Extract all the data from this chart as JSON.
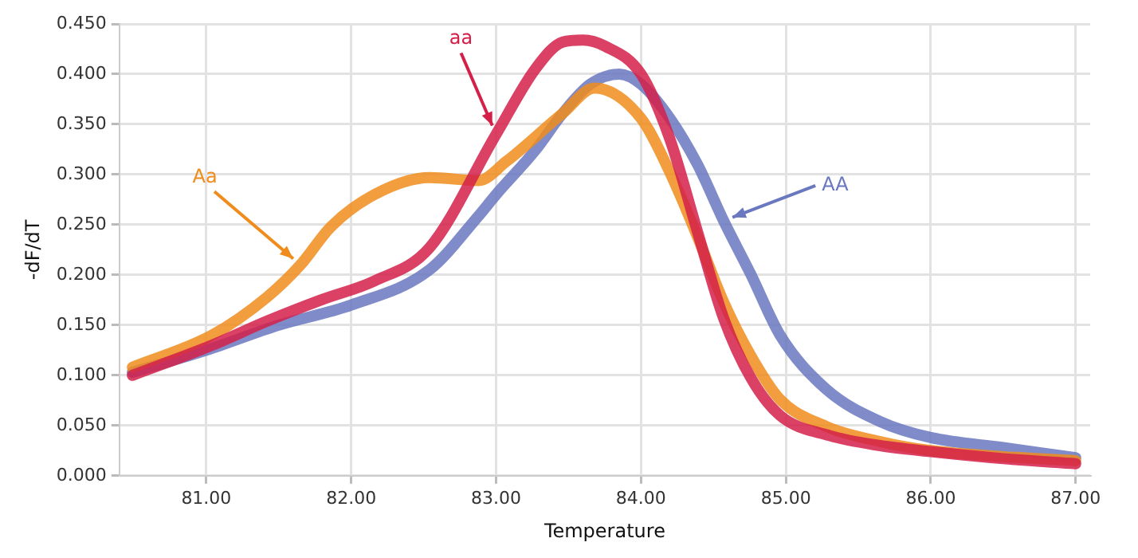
{
  "chart_data": {
    "type": "line",
    "xlabel": "Temperature",
    "ylabel": "-dF/dT",
    "xlim": [
      80.4,
      87.1
    ],
    "ylim": [
      0,
      0.45
    ],
    "xticks": [
      {
        "value": 81,
        "label": "81.00"
      },
      {
        "value": 82,
        "label": "82.00"
      },
      {
        "value": 83,
        "label": "83.00"
      },
      {
        "value": 84,
        "label": "84.00"
      },
      {
        "value": 85,
        "label": "85.00"
      },
      {
        "value": 86,
        "label": "86.00"
      },
      {
        "value": 87,
        "label": "87.00"
      }
    ],
    "yticks": [
      {
        "value": 0,
        "label": "0.000"
      },
      {
        "value": 0.05,
        "label": "0.050"
      },
      {
        "value": 0.1,
        "label": "0.100"
      },
      {
        "value": 0.15,
        "label": "0.150"
      },
      {
        "value": 0.2,
        "label": "0.200"
      },
      {
        "value": 0.25,
        "label": "0.250"
      },
      {
        "value": 0.3,
        "label": "0.300"
      },
      {
        "value": 0.35,
        "label": "0.350"
      },
      {
        "value": 0.4,
        "label": "0.400"
      },
      {
        "value": 0.45,
        "label": "0.450"
      }
    ],
    "grid": true,
    "legend": false,
    "marker": "none",
    "line_style": "solid",
    "series": [
      {
        "name": "aa",
        "color": "#d42049",
        "x": [
          80.49,
          81.04,
          81.42,
          81.79,
          82.16,
          82.54,
          83.0,
          83.27,
          83.46,
          83.6,
          83.75,
          84.0,
          84.2,
          84.39,
          84.57,
          84.76,
          84.96,
          85.3,
          85.65,
          86.0,
          86.5,
          87.0
        ],
        "values": [
          0.1,
          0.13,
          0.154,
          0.175,
          0.194,
          0.227,
          0.34,
          0.405,
          0.432,
          0.434,
          0.428,
          0.4,
          0.335,
          0.243,
          0.157,
          0.097,
          0.06,
          0.04,
          0.03,
          0.024,
          0.017,
          0.012
        ]
      },
      {
        "name": "Aa",
        "color": "#f08c1c",
        "x": [
          80.49,
          81.04,
          81.42,
          81.65,
          81.86,
          82.16,
          82.54,
          82.88,
          83.07,
          83.46,
          83.68,
          84.0,
          84.2,
          84.39,
          84.57,
          84.76,
          84.96,
          85.28,
          85.65,
          86.0,
          86.5,
          87.0
        ],
        "values": [
          0.108,
          0.14,
          0.178,
          0.21,
          0.248,
          0.28,
          0.297,
          0.294,
          0.313,
          0.361,
          0.386,
          0.356,
          0.302,
          0.238,
          0.173,
          0.119,
          0.076,
          0.049,
          0.034,
          0.025,
          0.019,
          0.015
        ]
      },
      {
        "name": "AA",
        "color": "#6a78c0",
        "x": [
          80.49,
          81.0,
          81.5,
          82.0,
          82.54,
          82.88,
          83.0,
          83.27,
          83.46,
          83.65,
          83.85,
          84.0,
          84.2,
          84.39,
          84.57,
          84.76,
          84.96,
          85.28,
          85.65,
          86.0,
          86.5,
          87.0
        ],
        "values": [
          0.103,
          0.125,
          0.15,
          0.17,
          0.205,
          0.259,
          0.28,
          0.324,
          0.361,
          0.39,
          0.4,
          0.39,
          0.356,
          0.31,
          0.254,
          0.2,
          0.14,
          0.086,
          0.054,
          0.038,
          0.028,
          0.018
        ]
      }
    ]
  }
}
